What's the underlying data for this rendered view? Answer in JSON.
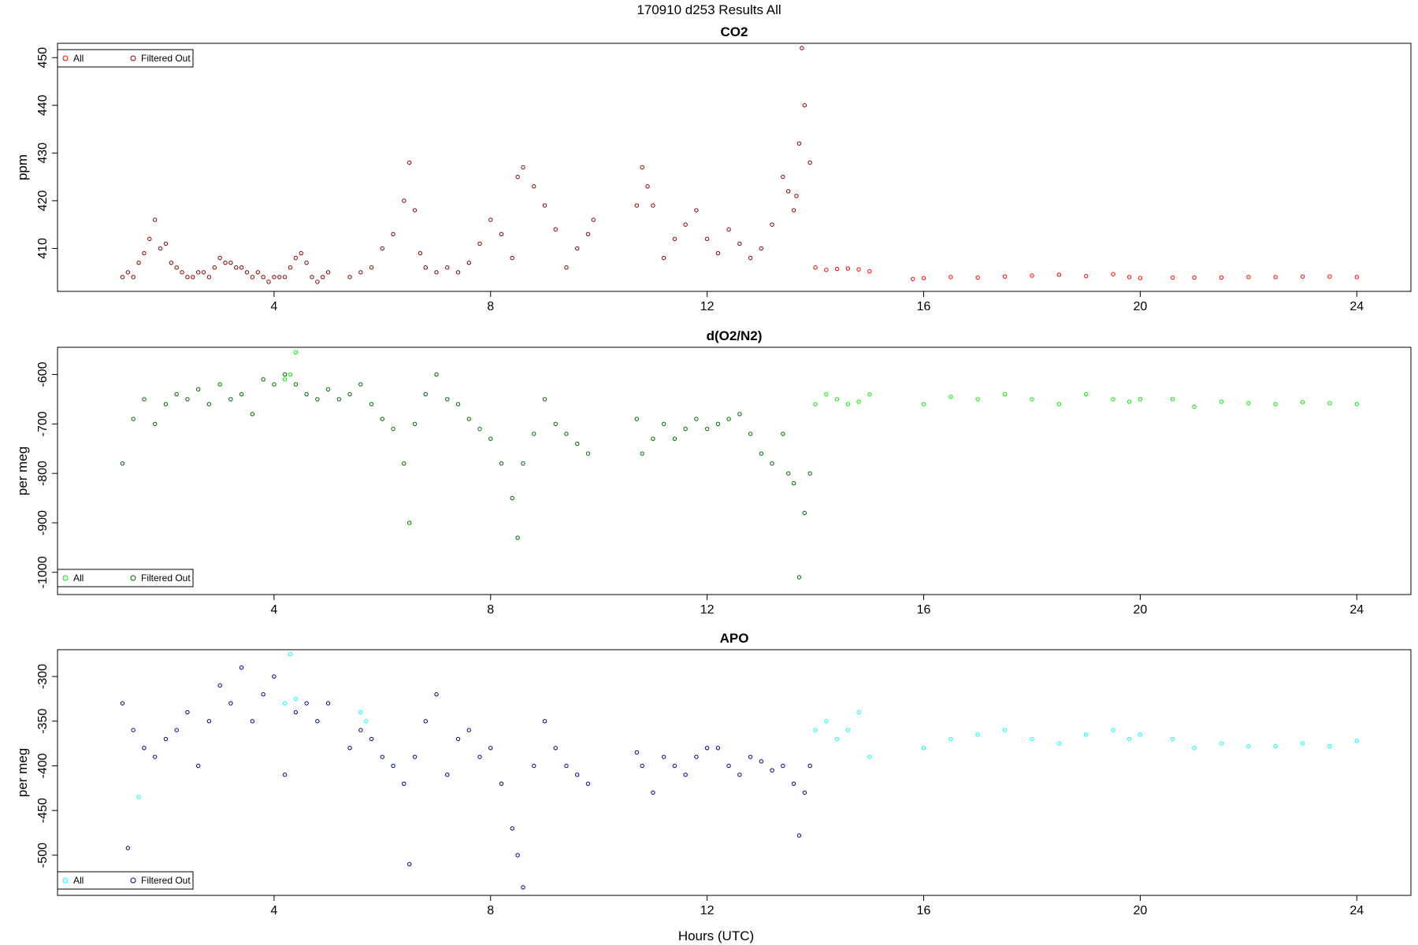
{
  "figure_title": "170910   d253   Results All",
  "x_axis_label": "Hours (UTC)",
  "chart_data": [
    {
      "type": "scatter",
      "title": "CO2",
      "ylabel": "ppm",
      "xlim": [
        0.0,
        25.0
      ],
      "ylim": [
        401.0,
        453.0
      ],
      "xticks": [
        4,
        8,
        12,
        16,
        20,
        24
      ],
      "yticks": [
        410,
        420,
        430,
        440,
        450
      ],
      "legend": {
        "placement": "top-left",
        "entries": [
          "All",
          "Filtered Out"
        ]
      },
      "colors": {
        "all": "#ff0000",
        "filtered": "#8b0000"
      },
      "series": [
        {
          "name": "Filtered Out",
          "x": [
            1.2,
            1.3,
            1.4,
            1.5,
            1.6,
            1.7,
            1.8,
            1.9,
            2.0,
            2.1,
            2.2,
            2.3,
            2.4,
            2.5,
            2.6,
            2.7,
            2.8,
            2.9,
            3.0,
            3.1,
            3.2,
            3.3,
            3.4,
            3.5,
            3.6,
            3.7,
            3.8,
            3.9,
            4.0,
            4.1,
            4.2,
            4.3,
            4.4,
            4.5,
            4.6,
            4.7,
            4.8,
            4.9,
            5.0,
            5.4,
            5.6,
            5.8,
            6.0,
            6.2,
            6.4,
            6.5,
            6.6,
            6.7,
            6.8,
            7.0,
            7.2,
            7.4,
            7.6,
            7.8,
            8.0,
            8.2,
            8.4,
            8.5,
            8.6,
            8.8,
            9.0,
            9.2,
            9.4,
            9.6,
            9.8,
            9.9,
            10.7,
            10.8,
            10.9,
            11.0,
            11.2,
            11.4,
            11.6,
            11.8,
            12.0,
            12.2,
            12.4,
            12.6,
            12.8,
            13.0,
            13.2,
            13.4,
            13.5,
            13.6,
            13.65,
            13.7,
            13.75,
            13.8,
            13.9
          ],
          "y": [
            404,
            405,
            404,
            407,
            409,
            412,
            416,
            410,
            411,
            407,
            406,
            405,
            404,
            404,
            405,
            405,
            404,
            406,
            408,
            407,
            407,
            406,
            406,
            405,
            404,
            405,
            404,
            403,
            404,
            404,
            404,
            406,
            408,
            409,
            407,
            404,
            403,
            404,
            405,
            404,
            405,
            406,
            410,
            413,
            420,
            428,
            418,
            409,
            406,
            405,
            406,
            405,
            407,
            411,
            416,
            413,
            408,
            425,
            427,
            423,
            419,
            414,
            406,
            410,
            413,
            416,
            419,
            427,
            423,
            419,
            408,
            412,
            415,
            418,
            412,
            409,
            414,
            411,
            408,
            410,
            415,
            425,
            422,
            418,
            421,
            432,
            452,
            440,
            428
          ]
        },
        {
          "name": "All",
          "x": [
            14.0,
            14.2,
            14.4,
            14.6,
            14.8,
            15.0,
            15.8,
            16.0,
            16.5,
            17.0,
            17.5,
            18.0,
            18.5,
            19.0,
            19.5,
            19.8,
            20.0,
            20.6,
            21.0,
            21.5,
            22.0,
            22.5,
            23.0,
            23.5,
            24.0
          ],
          "y": [
            406,
            405.5,
            405.7,
            405.8,
            405.6,
            405.2,
            403.6,
            403.8,
            404.0,
            403.9,
            404.1,
            404.3,
            404.5,
            404.2,
            404.6,
            404.0,
            403.8,
            403.9,
            403.9,
            403.9,
            404.0,
            404.0,
            404.1,
            404.1,
            404.0
          ]
        }
      ]
    },
    {
      "type": "scatter",
      "title": "d(O2/N2)",
      "ylabel": "per meg",
      "xlim": [
        0.0,
        25.0
      ],
      "ylim": [
        -1045.0,
        -545.0
      ],
      "xticks": [
        4,
        8,
        12,
        16,
        20,
        24
      ],
      "yticks": [
        -1000,
        -900,
        -800,
        -700,
        -600
      ],
      "legend": {
        "placement": "bottom-left",
        "entries": [
          "All",
          "Filtered Out"
        ]
      },
      "colors": {
        "all": "#00ee00",
        "filtered": "#006400"
      },
      "series": [
        {
          "name": "Filtered Out",
          "x": [
            1.2,
            1.4,
            1.6,
            1.8,
            2.0,
            2.2,
            2.4,
            2.6,
            2.8,
            3.0,
            3.2,
            3.4,
            3.6,
            3.8,
            4.0,
            4.2,
            4.4,
            4.6,
            4.8,
            5.0,
            5.2,
            5.4,
            5.6,
            5.8,
            6.0,
            6.2,
            6.4,
            6.5,
            6.6,
            6.8,
            7.0,
            7.2,
            7.4,
            7.6,
            7.8,
            8.0,
            8.2,
            8.4,
            8.5,
            8.6,
            8.8,
            9.0,
            9.2,
            9.4,
            9.6,
            9.8,
            10.7,
            10.8,
            11.0,
            11.2,
            11.4,
            11.6,
            11.8,
            12.0,
            12.2,
            12.4,
            12.6,
            12.8,
            13.0,
            13.2,
            13.4,
            13.5,
            13.6,
            13.7,
            13.8,
            13.9
          ],
          "y": [
            -780,
            -690,
            -650,
            -700,
            -660,
            -640,
            -650,
            -630,
            -660,
            -620,
            -650,
            -640,
            -680,
            -610,
            -620,
            -600,
            -620,
            -640,
            -650,
            -630,
            -650,
            -640,
            -620,
            -660,
            -690,
            -710,
            -780,
            -900,
            -700,
            -640,
            -600,
            -650,
            -660,
            -690,
            -710,
            -730,
            -780,
            -850,
            -930,
            -780,
            -720,
            -650,
            -700,
            -720,
            -740,
            -760,
            -690,
            -760,
            -730,
            -700,
            -730,
            -710,
            -690,
            -710,
            -700,
            -690,
            -680,
            -720,
            -760,
            -780,
            -720,
            -800,
            -820,
            -1010,
            -880,
            -800
          ]
        },
        {
          "name": "All",
          "x": [
            4.2,
            4.3,
            4.4,
            14.0,
            14.2,
            14.4,
            14.6,
            14.8,
            15.0,
            16.0,
            16.5,
            17.0,
            17.5,
            18.0,
            18.5,
            19.0,
            19.5,
            19.8,
            20.0,
            20.6,
            21.0,
            21.5,
            22.0,
            22.5,
            23.0,
            23.5,
            24.0
          ],
          "y": [
            -610,
            -600,
            -555,
            -660,
            -640,
            -650,
            -660,
            -655,
            -640,
            -660,
            -645,
            -650,
            -640,
            -650,
            -660,
            -640,
            -650,
            -655,
            -650,
            -650,
            -665,
            -655,
            -658,
            -660,
            -656,
            -658,
            -660
          ]
        }
      ]
    },
    {
      "type": "scatter",
      "title": "APO",
      "ylabel": "per meg",
      "xlim": [
        0.0,
        25.0
      ],
      "ylim": [
        -545.0,
        -270.0
      ],
      "xticks": [
        4,
        8,
        12,
        16,
        20,
        24
      ],
      "yticks": [
        -500,
        -450,
        -400,
        -350,
        -300
      ],
      "legend": {
        "placement": "bottom-left",
        "entries": [
          "All",
          "Filtered Out"
        ]
      },
      "colors": {
        "all": "#00ffff",
        "filtered": "#00008b"
      },
      "series": [
        {
          "name": "Filtered Out",
          "x": [
            1.2,
            1.3,
            1.4,
            1.6,
            1.8,
            2.0,
            2.2,
            2.4,
            2.6,
            2.8,
            3.0,
            3.2,
            3.4,
            3.6,
            3.8,
            4.0,
            4.2,
            4.4,
            4.6,
            4.8,
            5.0,
            5.4,
            5.6,
            5.8,
            6.0,
            6.2,
            6.4,
            6.5,
            6.6,
            6.8,
            7.0,
            7.2,
            7.4,
            7.6,
            7.8,
            8.0,
            8.2,
            8.4,
            8.5,
            8.6,
            8.8,
            9.0,
            9.2,
            9.4,
            9.6,
            9.8,
            10.7,
            10.8,
            11.0,
            11.2,
            11.4,
            11.6,
            11.8,
            12.0,
            12.2,
            12.4,
            12.6,
            12.8,
            13.0,
            13.2,
            13.4,
            13.6,
            13.7,
            13.8,
            13.9
          ],
          "y": [
            -330,
            -492,
            -360,
            -380,
            -390,
            -370,
            -360,
            -340,
            -400,
            -350,
            -310,
            -330,
            -290,
            -350,
            -320,
            -300,
            -410,
            -340,
            -330,
            -350,
            -330,
            -380,
            -360,
            -370,
            -390,
            -400,
            -420,
            -510,
            -390,
            -350,
            -320,
            -410,
            -370,
            -360,
            -390,
            -380,
            -420,
            -470,
            -500,
            -536,
            -400,
            -350,
            -380,
            -400,
            -410,
            -420,
            -385,
            -400,
            -430,
            -390,
            -400,
            -410,
            -390,
            -380,
            -380,
            -400,
            -410,
            -390,
            -395,
            -405,
            -400,
            -420,
            -478,
            -430,
            -400
          ]
        },
        {
          "name": "All",
          "x": [
            1.5,
            4.2,
            4.3,
            4.4,
            5.6,
            5.7,
            14.0,
            14.2,
            14.4,
            14.6,
            14.8,
            15.0,
            16.0,
            16.5,
            17.0,
            17.5,
            18.0,
            18.5,
            19.0,
            19.5,
            19.8,
            20.0,
            20.6,
            21.0,
            21.5,
            22.0,
            22.5,
            23.0,
            23.5,
            24.0
          ],
          "y": [
            -435,
            -330,
            -275,
            -325,
            -340,
            -350,
            -360,
            -350,
            -370,
            -360,
            -340,
            -390,
            -380,
            -370,
            -365,
            -360,
            -370,
            -375,
            -365,
            -360,
            -370,
            -365,
            -370,
            -380,
            -375,
            -378,
            -378,
            -375,
            -378,
            -372
          ]
        }
      ]
    }
  ]
}
